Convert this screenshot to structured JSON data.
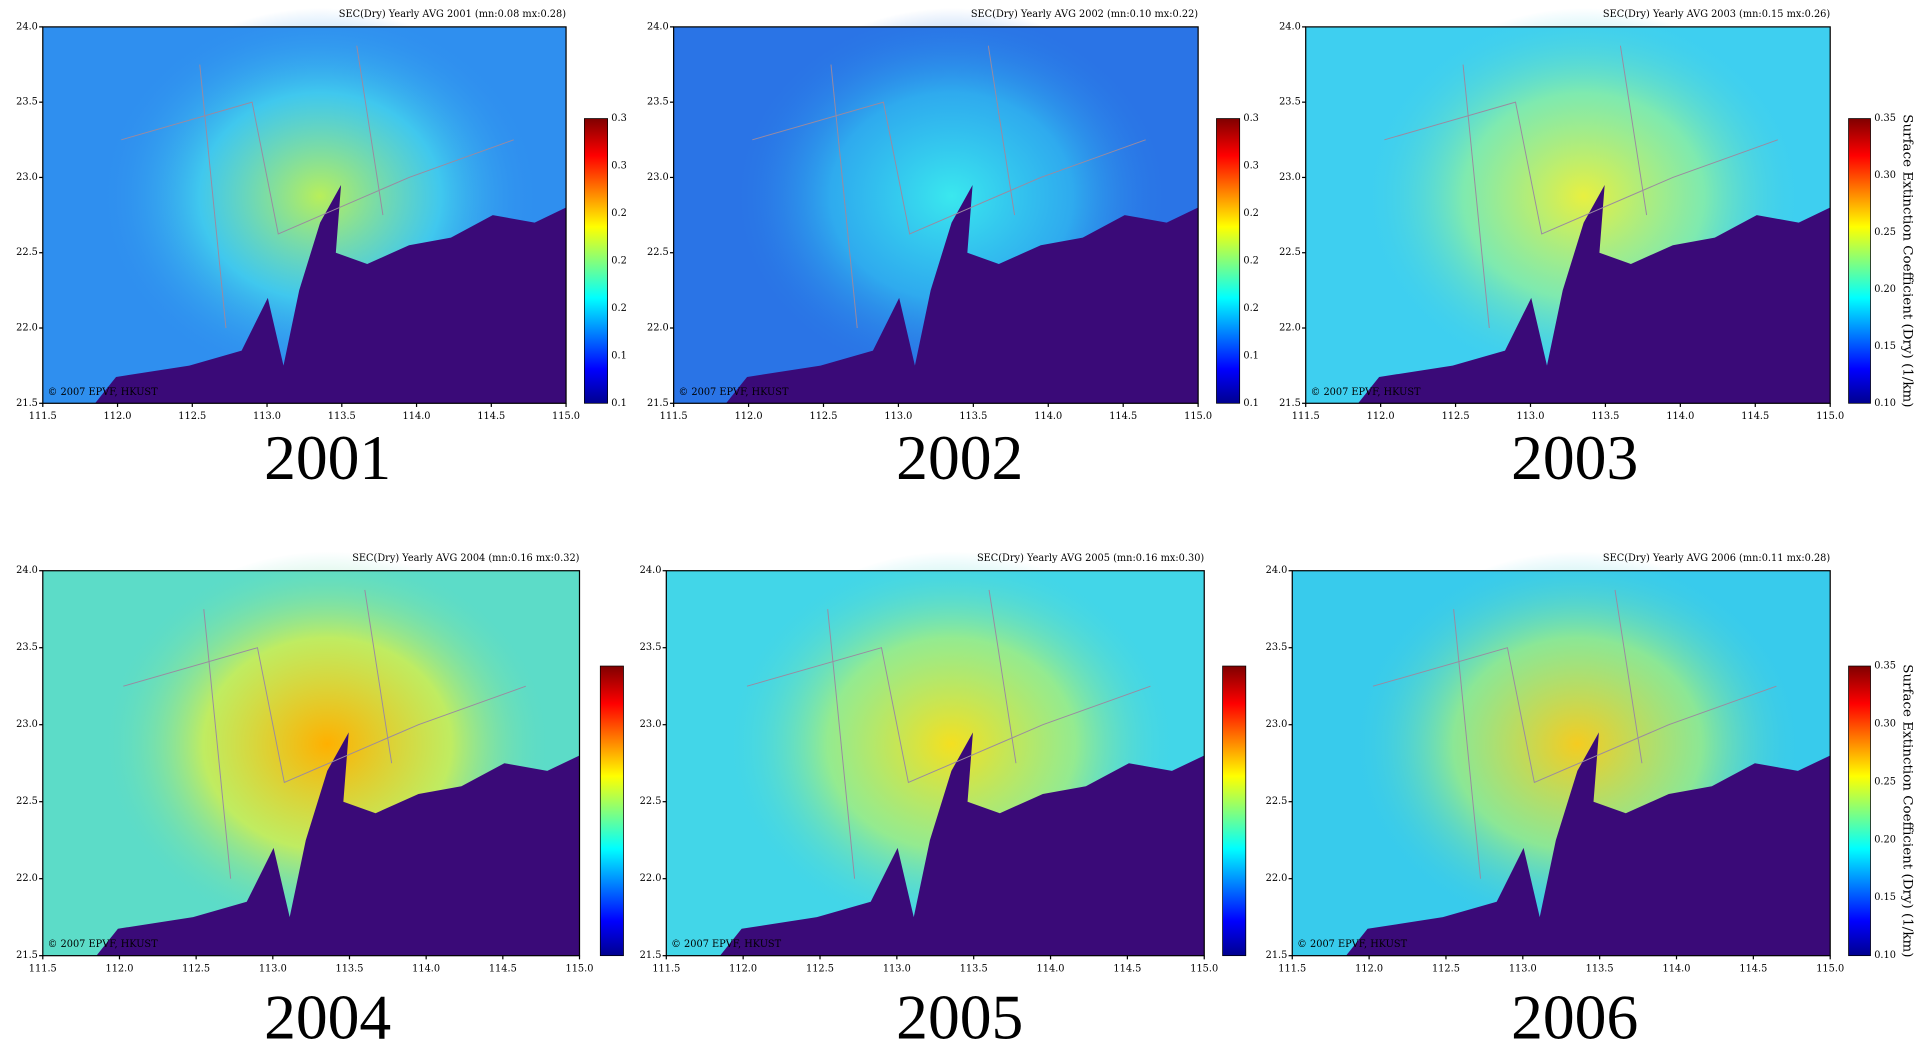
{
  "x_ticks": [
    "111.5",
    "112.0",
    "112.5",
    "113.0",
    "113.5",
    "114.0",
    "114.5",
    "115.0"
  ],
  "y_ticks": [
    "21.5",
    "22.0",
    "22.5",
    "23.0",
    "23.5",
    "24.0"
  ],
  "credit": "© 2007 EPVF, HKUST",
  "panels": [
    {
      "title": "SEC(Dry) Yearly AVG 2001 (mn:0.08 mx:0.28)",
      "year": "2001",
      "colorbar_ticks": [
        "0.1",
        "0.1",
        "0.2",
        "0.2",
        "0.2",
        "0.3",
        "0.3"
      ]
    },
    {
      "title": "SEC(Dry) Yearly AVG 2002 (mn:0.10 mx:0.22)",
      "year": "2002",
      "colorbar_ticks": [
        "0.1",
        "0.1",
        "0.2",
        "0.2",
        "0.2",
        "0.3",
        "0.3"
      ]
    },
    {
      "title": "SEC(Dry) Yearly AVG 2003 (mn:0.15 mx:0.26)",
      "year": "2003",
      "colorbar_ticks": [
        "0.10",
        "0.15",
        "0.20",
        "0.25",
        "0.30",
        "0.35"
      ],
      "colorbar_label": "Surface Extinction Coefficient (Dry) (1/km)"
    },
    {
      "title": "SEC(Dry) Yearly AVG 2004 (mn:0.16 mx:0.32)",
      "year": "2004",
      "colorbar_ticks": []
    },
    {
      "title": "SEC(Dry) Yearly AVG 2005 (mn:0.16 mx:0.30)",
      "year": "2005",
      "colorbar_ticks": []
    },
    {
      "title": "SEC(Dry) Yearly AVG 2006 (mn:0.11 mx:0.28)",
      "year": "2006",
      "colorbar_ticks": [
        "0.10",
        "0.15",
        "0.20",
        "0.25",
        "0.30",
        "0.35"
      ],
      "colorbar_label": "Surface Extinction Coefficient (Dry) (1/km)"
    }
  ]
}
